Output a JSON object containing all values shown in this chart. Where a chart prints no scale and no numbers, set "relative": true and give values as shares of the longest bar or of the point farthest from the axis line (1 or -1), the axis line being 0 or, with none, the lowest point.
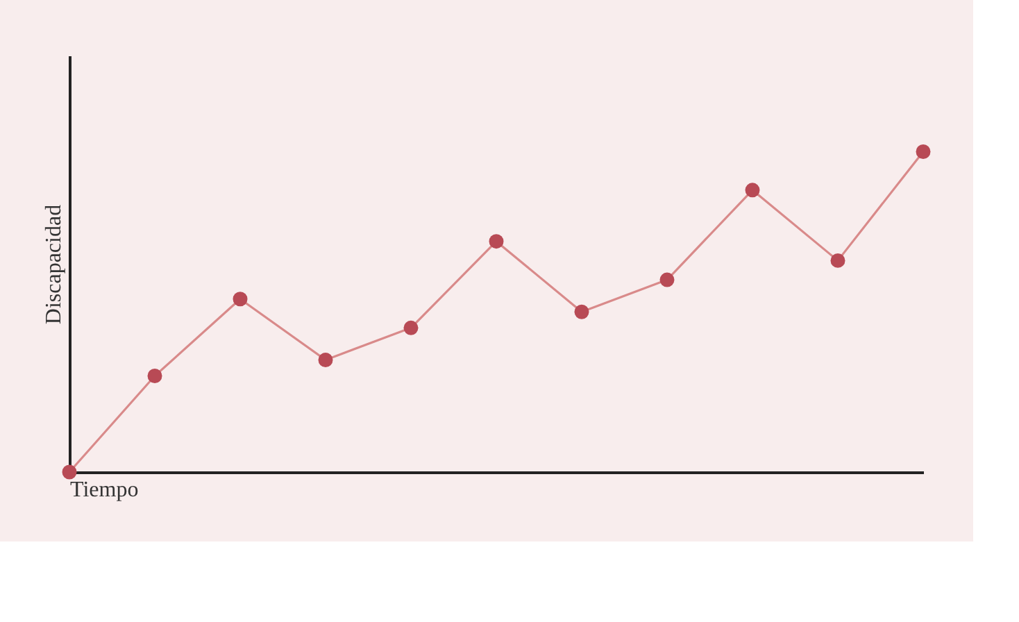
{
  "chart_data": {
    "type": "line",
    "relative": true,
    "xlabel": "Tiempo",
    "ylabel": "Discapacidad",
    "categories": [
      null,
      null,
      null,
      null,
      null,
      null,
      null,
      null,
      null,
      null,
      null
    ],
    "series": [
      {
        "color": "#d98a8a",
        "marker": "circle",
        "line_style": "solid",
        "values": [
          0,
          0.3,
          0.54,
          0.35,
          0.45,
          0.72,
          0.5,
          0.6,
          0.88,
          0.66,
          1
        ]
      }
    ]
  }
}
